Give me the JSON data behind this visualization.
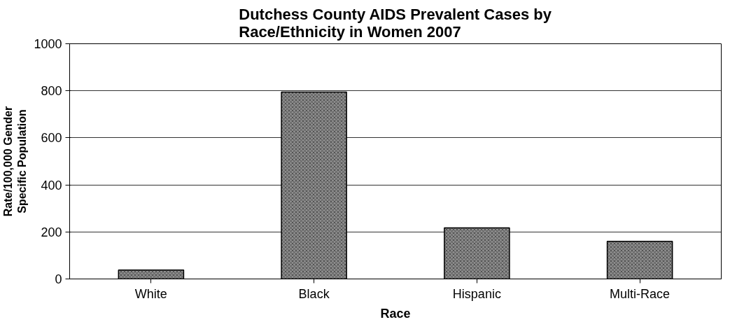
{
  "chart_data": {
    "type": "bar",
    "title": "Dutchess County AIDS Prevalent Cases by\nRace/Ethnicity in Women 2007",
    "xlabel": "Race",
    "ylabel": "Rate/100,000 Gender\nSpecific Population",
    "categories": [
      "White",
      "Black",
      "Hispanic",
      "Multi-Race"
    ],
    "values": [
      38,
      795,
      217,
      160
    ],
    "color": "#8c8c8c",
    "ylim": [
      0,
      1000
    ],
    "yticks": [
      0,
      200,
      400,
      600,
      800,
      1000
    ],
    "grid": "y"
  }
}
